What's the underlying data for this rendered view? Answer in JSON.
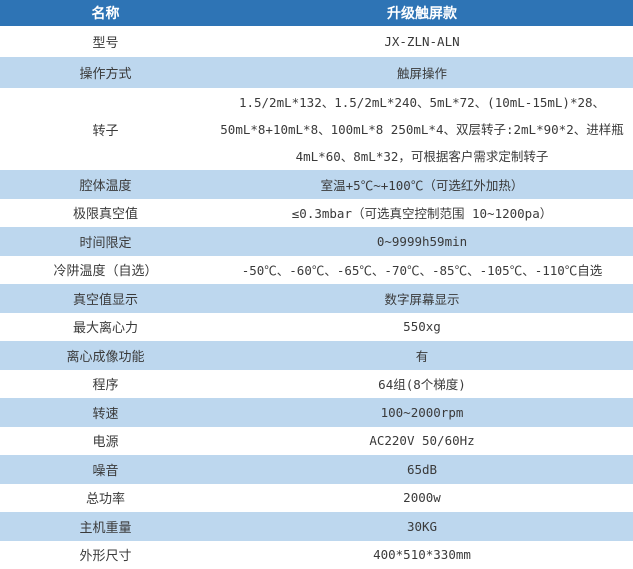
{
  "colors": {
    "header_bg": "#2E74B5",
    "header_text": "#FFFFFF",
    "row_bg": "#FFFFFF",
    "row_alt_bg": "#BDD7EE",
    "body_text": "#3A3A3A"
  },
  "table": {
    "header": {
      "col1": "名称",
      "col2": "升级触屏款"
    },
    "rows": [
      {
        "label": "型号",
        "value": "JX-ZLN-ALN"
      },
      {
        "label": "操作方式",
        "value": "触屏操作"
      },
      {
        "label": "转子",
        "value": "1.5/2mL*132、1.5/2mL*240、5mL*72、(10mL-15mL)*28、50mL*8+10mL*8、100mL*8 250mL*4、双层转子:2mL*90*2、进样瓶4mL*60、8mL*32，可根据客户需求定制转子"
      },
      {
        "label": "腔体温度",
        "value": "室温+5℃~+100℃（可选红外加热）"
      },
      {
        "label": "极限真空值",
        "value": "≤0.3mbar（可选真空控制范围 10~1200pa）"
      },
      {
        "label": "时间限定",
        "value": "0~9999h59min"
      },
      {
        "label": "冷阱温度（自选）",
        "value": "-50℃、-60℃、-65℃、-70℃、-85℃、-105℃、-110℃自选"
      },
      {
        "label": "真空值显示",
        "value": "数字屏幕显示"
      },
      {
        "label": "最大离心力",
        "value": "550xg"
      },
      {
        "label": "离心成像功能",
        "value": "有"
      },
      {
        "label": "程序",
        "value": "64组(8个梯度)"
      },
      {
        "label": "转速",
        "value": "100~2000rpm"
      },
      {
        "label": "电源",
        "value": "AC220V 50/60Hz"
      },
      {
        "label": "噪音",
        "value": "65dB"
      },
      {
        "label": "总功率",
        "value": "2000w"
      },
      {
        "label": "主机重量",
        "value": "30KG"
      },
      {
        "label": "外形尺寸",
        "value": "400*510*330mm"
      }
    ]
  }
}
